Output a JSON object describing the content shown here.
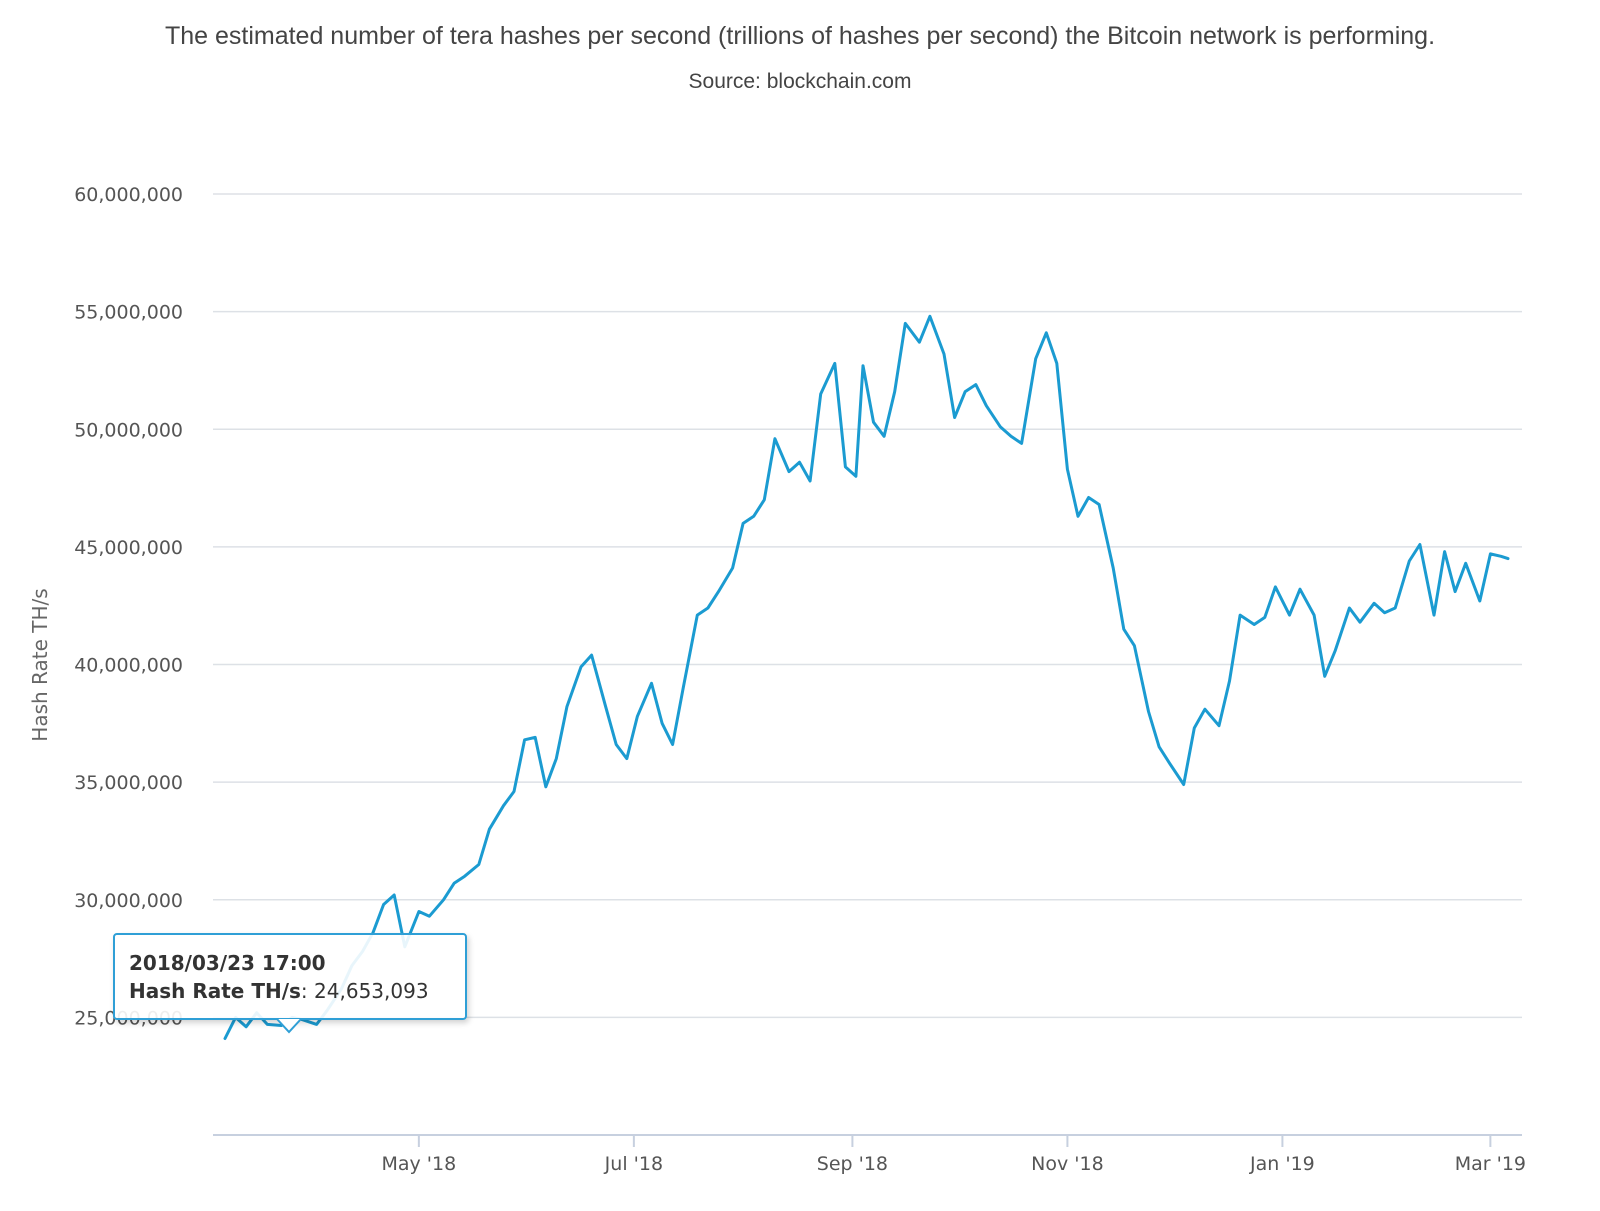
{
  "title": "The estimated number of tera hashes per second (trillions of hashes per second) the Bitcoin network is performing.",
  "subtitle": "Source: blockchain.com",
  "colors": {
    "line": "#1b9bd1",
    "grid": "#dde1e6",
    "axis": "#c7d0df",
    "tooltip_border": "#2f9fd6"
  },
  "tooltip": {
    "date": "2018/03/23 17:00",
    "series_label": "Hash Rate TH/s",
    "value": "24,653,093"
  },
  "chart_data": {
    "type": "line",
    "title": "The estimated number of tera hashes per second (trillions of hashes per second) the Bitcoin network is performing.",
    "subtitle": "Source: blockchain.com",
    "xlabel": "",
    "ylabel": "Hash Rate TH/s",
    "ylim": [
      20000000,
      60000000
    ],
    "xlim": [
      "2018-03-07",
      "2019-03-06"
    ],
    "y_ticks": [
      25000000,
      30000000,
      35000000,
      40000000,
      45000000,
      50000000,
      55000000,
      60000000
    ],
    "y_tick_labels": [
      "25,000,000",
      "30,000,000",
      "35,000,000",
      "40,000,000",
      "45,000,000",
      "50,000,000",
      "55,000,000",
      "60,000,000"
    ],
    "x_ticks": [
      "2018-05-01",
      "2018-07-01",
      "2018-09-01",
      "2018-11-01",
      "2019-01-01",
      "2019-03-01"
    ],
    "x_tick_labels": [
      "May '18",
      "Jul '18",
      "Sep '18",
      "Nov '18",
      "Jan '19",
      "Mar '19"
    ],
    "grid": true,
    "legend": "none",
    "series": [
      {
        "name": "Hash Rate TH/s",
        "x": [
          "2018-03-07",
          "2018-03-10",
          "2018-03-13",
          "2018-03-16",
          "2018-03-19",
          "2018-03-23",
          "2018-03-26",
          "2018-03-29",
          "2018-04-02",
          "2018-04-05",
          "2018-04-09",
          "2018-04-12",
          "2018-04-15",
          "2018-04-18",
          "2018-04-21",
          "2018-04-24",
          "2018-04-27",
          "2018-05-01",
          "2018-05-04",
          "2018-05-08",
          "2018-05-11",
          "2018-05-14",
          "2018-05-18",
          "2018-05-21",
          "2018-05-25",
          "2018-05-28",
          "2018-05-31",
          "2018-06-03",
          "2018-06-06",
          "2018-06-09",
          "2018-06-12",
          "2018-06-16",
          "2018-06-19",
          "2018-06-23",
          "2018-06-26",
          "2018-06-29",
          "2018-07-02",
          "2018-07-06",
          "2018-07-09",
          "2018-07-12",
          "2018-07-15",
          "2018-07-19",
          "2018-07-22",
          "2018-07-25",
          "2018-07-29",
          "2018-08-01",
          "2018-08-04",
          "2018-08-07",
          "2018-08-10",
          "2018-08-14",
          "2018-08-17",
          "2018-08-20",
          "2018-08-23",
          "2018-08-27",
          "2018-08-30",
          "2018-09-02",
          "2018-09-04",
          "2018-09-07",
          "2018-09-10",
          "2018-09-13",
          "2018-09-16",
          "2018-09-20",
          "2018-09-23",
          "2018-09-27",
          "2018-09-30",
          "2018-10-03",
          "2018-10-06",
          "2018-10-09",
          "2018-10-13",
          "2018-10-16",
          "2018-10-19",
          "2018-10-23",
          "2018-10-26",
          "2018-10-29",
          "2018-11-01",
          "2018-11-04",
          "2018-11-07",
          "2018-11-10",
          "2018-11-14",
          "2018-11-17",
          "2018-11-20",
          "2018-11-24",
          "2018-11-27",
          "2018-11-30",
          "2018-12-04",
          "2018-12-07",
          "2018-12-10",
          "2018-12-14",
          "2018-12-17",
          "2018-12-20",
          "2018-12-24",
          "2018-12-27",
          "2018-12-30",
          "2019-01-03",
          "2019-01-06",
          "2019-01-10",
          "2019-01-13",
          "2019-01-16",
          "2019-01-20",
          "2019-01-23",
          "2019-01-27",
          "2019-01-30",
          "2019-02-02",
          "2019-02-06",
          "2019-02-09",
          "2019-02-13",
          "2019-02-16",
          "2019-02-19",
          "2019-02-22",
          "2019-02-26",
          "2019-03-01",
          "2019-03-04",
          "2019-03-06"
        ],
        "values": [
          24100000,
          25000000,
          24600000,
          25200000,
          24700000,
          24653093,
          25000000,
          24900000,
          24700000,
          25300000,
          26200000,
          27200000,
          27800000,
          28600000,
          29800000,
          30200000,
          28000000,
          29500000,
          29300000,
          30000000,
          30700000,
          31000000,
          31500000,
          33000000,
          34000000,
          34600000,
          36800000,
          36900000,
          34800000,
          36000000,
          38200000,
          39900000,
          40400000,
          38200000,
          36600000,
          36000000,
          37800000,
          39200000,
          37500000,
          36600000,
          39000000,
          42100000,
          42400000,
          43100000,
          44100000,
          46000000,
          46300000,
          47000000,
          49600000,
          48200000,
          48600000,
          47800000,
          51500000,
          52800000,
          48400000,
          48000000,
          52700000,
          50300000,
          49700000,
          51600000,
          54500000,
          53700000,
          54800000,
          53200000,
          50500000,
          51600000,
          51900000,
          51000000,
          50100000,
          49700000,
          49400000,
          53000000,
          54100000,
          52800000,
          48300000,
          46300000,
          47100000,
          46800000,
          44100000,
          41500000,
          40800000,
          38000000,
          36500000,
          35800000,
          34900000,
          37300000,
          38100000,
          37400000,
          39300000,
          42100000,
          41700000,
          42000000,
          43300000,
          42100000,
          43200000,
          42100000,
          39500000,
          40600000,
          42400000,
          41800000,
          42600000,
          42200000,
          42400000,
          44400000,
          45100000,
          42100000,
          44800000,
          43100000,
          44300000,
          42700000,
          44700000,
          44600000,
          44500000
        ]
      }
    ]
  }
}
